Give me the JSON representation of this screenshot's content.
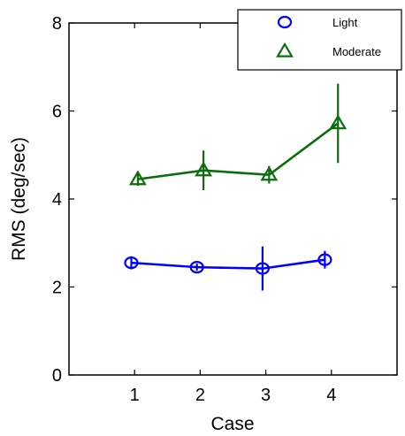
{
  "chart_data": {
    "type": "line",
    "title": "",
    "xlabel": "Case",
    "ylabel": "RMS (deg/sec)",
    "x": [
      1,
      2,
      3,
      4
    ],
    "xlim": [
      0,
      5
    ],
    "ylim": [
      0,
      8
    ],
    "xticks": [
      "1",
      "2",
      "3",
      "4"
    ],
    "yticks": [
      "0",
      "2",
      "4",
      "6",
      "8"
    ],
    "grid": false,
    "legend_position": "top-right",
    "series": [
      {
        "name": "Light",
        "marker": "circle",
        "color": "#0000ff",
        "x": [
          0.95,
          1.95,
          2.95,
          3.9
        ],
        "values": [
          2.55,
          2.45,
          2.42,
          2.62
        ],
        "error": [
          0.15,
          0.08,
          0.5,
          0.2
        ]
      },
      {
        "name": "Moderate",
        "marker": "triangle",
        "color": "#0a6e0a",
        "x": [
          1.05,
          2.05,
          3.05,
          4.1
        ],
        "values": [
          4.45,
          4.65,
          4.55,
          5.72
        ],
        "error": [
          0.15,
          0.45,
          0.2,
          0.9
        ]
      }
    ]
  }
}
